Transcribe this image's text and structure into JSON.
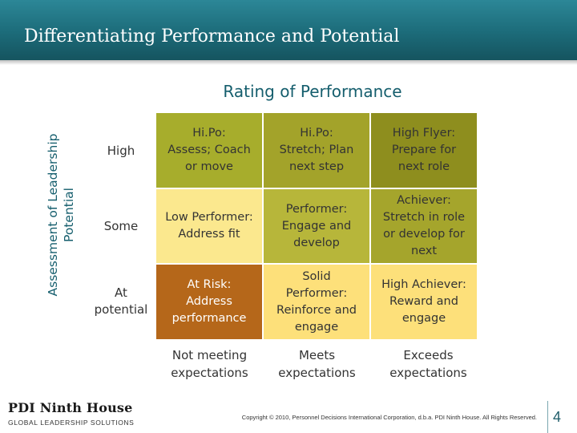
{
  "slide": {
    "title": "Differentiating Performance and Potential",
    "page_number": "4",
    "copyright": "Copyright © 2010, Personnel Decisions International Corporation, d.b.a. PDI Ninth House. All Rights Reserved.",
    "logo": {
      "name": "PDI Ninth House",
      "tagline": "GLOBAL LEADERSHIP SOLUTIONS"
    }
  },
  "matrix": {
    "column_heading": "Rating of Performance",
    "row_heading": "Assessment of Leadership Potential",
    "row_labels": [
      "High",
      "Some",
      "At potential"
    ],
    "column_labels": [
      "Not meeting expectations",
      "Meets expectations",
      "Exceeds expectations"
    ],
    "cells": [
      [
        {
          "title": "Hi.Po:",
          "text": "Assess; Coach or move",
          "color": "#a7ad2c"
        },
        {
          "title": "Hi.Po:",
          "text": "Stretch; Plan next step",
          "color": "#a3a32a"
        },
        {
          "title": "High Flyer:",
          "text": "Prepare for next role",
          "color": "#8e8e1e"
        }
      ],
      [
        {
          "title": "Low Performer:",
          "text": "Address fit",
          "color": "#fbe88e"
        },
        {
          "title": "Performer:",
          "text": "Engage and develop",
          "color": "#b7b63a"
        },
        {
          "title": "Achiever:",
          "text": "Stretch in role or develop for next",
          "color": "#a5a52c"
        }
      ],
      [
        {
          "title": "At Risk:",
          "text": "Address performance",
          "color": "#b5671a"
        },
        {
          "title": "Solid Performer:",
          "text": "Reinforce and engage",
          "color": "#fde07a"
        },
        {
          "title": "High Achiever:",
          "text": "Reward and engage",
          "color": "#fde07a"
        }
      ]
    ]
  }
}
